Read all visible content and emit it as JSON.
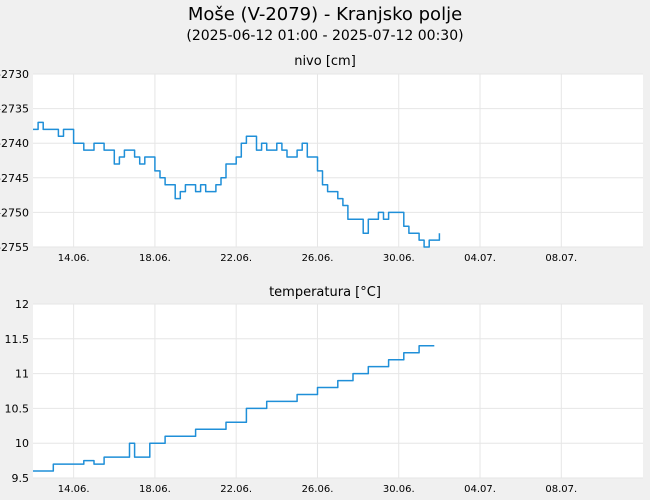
{
  "header": {
    "title": "Moše (V-2079) - Kranjsko polje",
    "subtitle": "(2025-06-12 01:00 - 2025-07-12 00:30)"
  },
  "colors": {
    "background": "#f0f0f0",
    "plot_background": "#ffffff",
    "grid": "#e6e6e6",
    "series": "#1f8fd8",
    "text": "#000000"
  },
  "chart_data": [
    {
      "type": "line",
      "title": "nivo [cm]",
      "x_unit": "days since 2025-06-12 00:00",
      "xlim_dates": [
        "2025-06-12 00:00",
        "2025-07-12 00:30"
      ],
      "x_ticks": [
        {
          "label": "14.06.",
          "x": "2025-06-14"
        },
        {
          "label": "18.06.",
          "x": "2025-06-18"
        },
        {
          "label": "22.06.",
          "x": "2025-06-22"
        },
        {
          "label": "26.06.",
          "x": "2025-06-26"
        },
        {
          "label": "30.06.",
          "x": "2025-06-30"
        },
        {
          "label": "04.07.",
          "x": "2025-07-04"
        },
        {
          "label": "08.07.",
          "x": "2025-07-08"
        }
      ],
      "ylim": [
        -2755,
        -2730
      ],
      "y_ticks": [
        -2730,
        -2735,
        -2740,
        -2745,
        -2750,
        -2755
      ],
      "grid": true,
      "series": [
        {
          "points": [
            [
              "2025-06-12 00:00",
              -2738
            ],
            [
              "2025-06-12 06:00",
              -2737
            ],
            [
              "2025-06-12 12:00",
              -2738
            ],
            [
              "2025-06-13 00:00",
              -2738
            ],
            [
              "2025-06-13 06:00",
              -2739
            ],
            [
              "2025-06-13 12:00",
              -2738
            ],
            [
              "2025-06-14 00:00",
              -2740
            ],
            [
              "2025-06-14 12:00",
              -2741
            ],
            [
              "2025-06-15 00:00",
              -2740
            ],
            [
              "2025-06-15 12:00",
              -2741
            ],
            [
              "2025-06-16 00:00",
              -2743
            ],
            [
              "2025-06-16 06:00",
              -2742
            ],
            [
              "2025-06-16 12:00",
              -2741
            ],
            [
              "2025-06-17 00:00",
              -2742
            ],
            [
              "2025-06-17 06:00",
              -2743
            ],
            [
              "2025-06-17 12:00",
              -2742
            ],
            [
              "2025-06-18 00:00",
              -2744
            ],
            [
              "2025-06-18 06:00",
              -2745
            ],
            [
              "2025-06-18 12:00",
              -2746
            ],
            [
              "2025-06-19 00:00",
              -2748
            ],
            [
              "2025-06-19 06:00",
              -2747
            ],
            [
              "2025-06-19 12:00",
              -2746
            ],
            [
              "2025-06-20 00:00",
              -2747
            ],
            [
              "2025-06-20 06:00",
              -2746
            ],
            [
              "2025-06-20 12:00",
              -2747
            ],
            [
              "2025-06-21 00:00",
              -2746
            ],
            [
              "2025-06-21 06:00",
              -2745
            ],
            [
              "2025-06-21 12:00",
              -2743
            ],
            [
              "2025-06-22 00:00",
              -2742
            ],
            [
              "2025-06-22 06:00",
              -2740
            ],
            [
              "2025-06-22 12:00",
              -2739
            ],
            [
              "2025-06-23 00:00",
              -2741
            ],
            [
              "2025-06-23 06:00",
              -2740
            ],
            [
              "2025-06-23 12:00",
              -2741
            ],
            [
              "2025-06-24 00:00",
              -2740
            ],
            [
              "2025-06-24 06:00",
              -2741
            ],
            [
              "2025-06-24 12:00",
              -2742
            ],
            [
              "2025-06-25 00:00",
              -2741
            ],
            [
              "2025-06-25 06:00",
              -2740
            ],
            [
              "2025-06-25 12:00",
              -2742
            ],
            [
              "2025-06-26 00:00",
              -2744
            ],
            [
              "2025-06-26 06:00",
              -2746
            ],
            [
              "2025-06-26 12:00",
              -2747
            ],
            [
              "2025-06-27 00:00",
              -2748
            ],
            [
              "2025-06-27 06:00",
              -2749
            ],
            [
              "2025-06-27 12:00",
              -2751
            ],
            [
              "2025-06-28 00:00",
              -2751
            ],
            [
              "2025-06-28 06:00",
              -2753
            ],
            [
              "2025-06-28 12:00",
              -2751
            ],
            [
              "2025-06-29 00:00",
              -2750
            ],
            [
              "2025-06-29 06:00",
              -2751
            ],
            [
              "2025-06-29 12:00",
              -2750
            ],
            [
              "2025-06-30 00:00",
              -2750
            ],
            [
              "2025-06-30 06:00",
              -2752
            ],
            [
              "2025-06-30 12:00",
              -2753
            ],
            [
              "2025-07-01 00:00",
              -2754
            ],
            [
              "2025-07-01 06:00",
              -2755
            ],
            [
              "2025-07-01 12:00",
              -2754
            ],
            [
              "2025-07-02 00:00",
              -2753
            ]
          ]
        }
      ]
    },
    {
      "type": "line",
      "title": "temperatura [°C]",
      "x_unit": "days since 2025-06-12 00:00",
      "xlim_dates": [
        "2025-06-12 00:00",
        "2025-07-12 00:30"
      ],
      "x_ticks": [
        {
          "label": "14.06.",
          "x": "2025-06-14"
        },
        {
          "label": "18.06.",
          "x": "2025-06-18"
        },
        {
          "label": "22.06.",
          "x": "2025-06-22"
        },
        {
          "label": "26.06.",
          "x": "2025-06-26"
        },
        {
          "label": "30.06.",
          "x": "2025-06-30"
        },
        {
          "label": "04.07.",
          "x": "2025-07-04"
        },
        {
          "label": "08.07.",
          "x": "2025-07-08"
        }
      ],
      "ylim": [
        9.5,
        12
      ],
      "y_ticks": [
        {
          "label": "12",
          "y": 12
        },
        {
          "label": "11.5",
          "y": 11.5
        },
        {
          "label": "11",
          "y": 11
        },
        {
          "label": "10.5",
          "y": 10.5
        },
        {
          "label": "10",
          "y": 10
        },
        {
          "label": "9.5",
          "y": 9.5
        }
      ],
      "grid": true,
      "series": [
        {
          "points": [
            [
              "2025-06-12 00:00",
              9.6
            ],
            [
              "2025-06-12 18:00",
              9.6
            ],
            [
              "2025-06-13 00:00",
              9.7
            ],
            [
              "2025-06-14 00:00",
              9.7
            ],
            [
              "2025-06-14 12:00",
              9.75
            ],
            [
              "2025-06-15 00:00",
              9.7
            ],
            [
              "2025-06-15 12:00",
              9.8
            ],
            [
              "2025-06-16 00:00",
              9.8
            ],
            [
              "2025-06-16 12:00",
              9.8
            ],
            [
              "2025-06-16 18:00",
              10.0
            ],
            [
              "2025-06-17 00:00",
              9.8
            ],
            [
              "2025-06-17 18:00",
              10.0
            ],
            [
              "2025-06-18 12:00",
              10.1
            ],
            [
              "2025-06-19 12:00",
              10.1
            ],
            [
              "2025-06-20 00:00",
              10.2
            ],
            [
              "2025-06-21 00:00",
              10.2
            ],
            [
              "2025-06-21 12:00",
              10.3
            ],
            [
              "2025-06-22 06:00",
              10.3
            ],
            [
              "2025-06-22 12:00",
              10.5
            ],
            [
              "2025-06-23 06:00",
              10.5
            ],
            [
              "2025-06-23 12:00",
              10.6
            ],
            [
              "2025-06-24 12:00",
              10.6
            ],
            [
              "2025-06-25 00:00",
              10.7
            ],
            [
              "2025-06-26 00:00",
              10.8
            ],
            [
              "2025-06-26 18:00",
              10.8
            ],
            [
              "2025-06-27 00:00",
              10.9
            ],
            [
              "2025-06-27 18:00",
              11.0
            ],
            [
              "2025-06-28 12:00",
              11.1
            ],
            [
              "2025-06-29 00:00",
              11.1
            ],
            [
              "2025-06-29 12:00",
              11.2
            ],
            [
              "2025-06-30 06:00",
              11.3
            ],
            [
              "2025-07-01 00:00",
              11.4
            ],
            [
              "2025-07-01 18:00",
              11.4
            ]
          ]
        }
      ]
    }
  ]
}
